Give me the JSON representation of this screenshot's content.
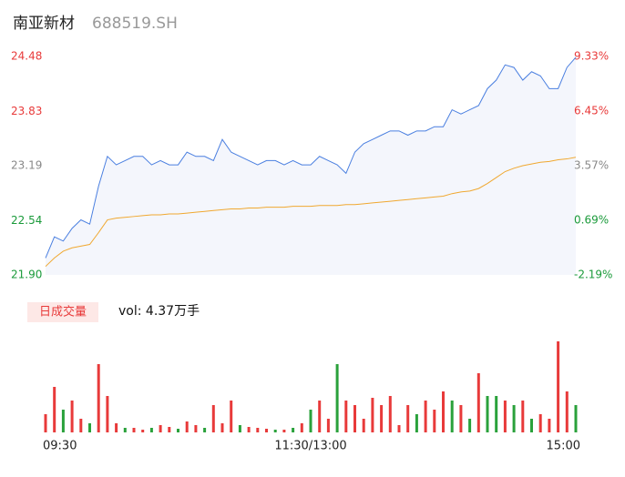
{
  "header": {
    "name": "南亚新材",
    "code": "688519.SH"
  },
  "chart_data": {
    "type": "line",
    "xlim": [
      0,
      240
    ],
    "xticks": [
      {
        "value": 0,
        "label": "09:30"
      },
      {
        "value": 120,
        "label": "11:30/13:00"
      },
      {
        "value": 240,
        "label": "15:00"
      }
    ],
    "x": [
      0,
      4,
      8,
      12,
      16,
      20,
      24,
      28,
      32,
      36,
      40,
      44,
      48,
      52,
      56,
      60,
      64,
      68,
      72,
      76,
      80,
      84,
      88,
      92,
      96,
      100,
      104,
      108,
      112,
      116,
      120,
      124,
      128,
      132,
      136,
      140,
      144,
      148,
      152,
      156,
      160,
      164,
      168,
      172,
      176,
      180,
      184,
      188,
      192,
      196,
      200,
      204,
      208,
      212,
      216,
      220,
      224,
      228,
      232,
      236,
      240
    ],
    "ylim": [
      21.9,
      24.48
    ],
    "yticks": [
      24.48,
      23.83,
      23.19,
      22.54,
      {
        "value": 21.9,
        "label": "21.90"
      }
    ],
    "ytick_colors": [
      "#e83a3a",
      "#e83a3a",
      "#888888",
      "#1a9a3a",
      "#1a9a3a"
    ],
    "y2lim": [
      -2.19,
      9.33
    ],
    "y2ticks": [
      {
        "value": 9.33,
        "label": "9.33%"
      },
      {
        "value": 6.45,
        "label": "6.45%"
      },
      {
        "value": 3.57,
        "label": "3.57%"
      },
      {
        "value": 0.69,
        "label": "0.69%"
      },
      {
        "value": -2.19,
        "label": "-2.19%"
      }
    ],
    "series": [
      {
        "color": "#4a7fe0",
        "values": [
          22.1,
          22.35,
          22.3,
          22.45,
          22.55,
          22.5,
          22.95,
          23.3,
          23.2,
          23.25,
          23.3,
          23.3,
          23.2,
          23.25,
          23.2,
          23.2,
          23.35,
          23.3,
          23.3,
          23.25,
          23.5,
          23.35,
          23.3,
          23.25,
          23.2,
          23.25,
          23.25,
          23.2,
          23.25,
          23.2,
          23.2,
          23.3,
          23.25,
          23.2,
          23.1,
          23.35,
          23.45,
          23.5,
          23.55,
          23.6,
          23.6,
          23.55,
          23.6,
          23.6,
          23.65,
          23.65,
          23.85,
          23.8,
          23.85,
          23.9,
          24.1,
          24.2,
          24.38,
          24.35,
          24.2,
          24.3,
          24.25,
          24.1,
          24.1,
          24.35,
          24.47
        ]
      },
      {
        "color": "#f0a830",
        "values": [
          22.0,
          22.1,
          22.18,
          22.22,
          22.24,
          22.26,
          22.4,
          22.55,
          22.57,
          22.58,
          22.59,
          22.6,
          22.61,
          22.61,
          22.62,
          22.62,
          22.63,
          22.64,
          22.65,
          22.66,
          22.67,
          22.68,
          22.68,
          22.69,
          22.69,
          22.7,
          22.7,
          22.7,
          22.71,
          22.71,
          22.71,
          22.72,
          22.72,
          22.72,
          22.73,
          22.73,
          22.74,
          22.75,
          22.76,
          22.77,
          22.78,
          22.79,
          22.8,
          22.81,
          22.82,
          22.83,
          22.86,
          22.88,
          22.89,
          22.92,
          22.98,
          23.05,
          23.12,
          23.16,
          23.19,
          23.21,
          23.23,
          23.24,
          23.26,
          23.27,
          23.29
        ]
      }
    ],
    "volume": {
      "label": "日成交量",
      "text": "vol: 4.37万手",
      "values": [
        20,
        50,
        25,
        35,
        15,
        10,
        75,
        40,
        10,
        5,
        5,
        3,
        5,
        8,
        6,
        4,
        12,
        8,
        5,
        30,
        10,
        35,
        8,
        6,
        5,
        4,
        3,
        3,
        5,
        10,
        25,
        35,
        15,
        75,
        35,
        30,
        15,
        38,
        30,
        40,
        8,
        30,
        20,
        35,
        25,
        45,
        35,
        30,
        15,
        65,
        40,
        40,
        35,
        30,
        35,
        15,
        20,
        15,
        100,
        45,
        30
      ],
      "colors": [
        "#e83a3a",
        "#e83a3a",
        "#2aa13b",
        "#e83a3a",
        "#e83a3a",
        "#2aa13b",
        "#e83a3a",
        "#e83a3a",
        "#e83a3a",
        "#2aa13b",
        "#e83a3a",
        "#e83a3a",
        "#2aa13b",
        "#e83a3a",
        "#e83a3a",
        "#2aa13b",
        "#e83a3a",
        "#e83a3a",
        "#2aa13b",
        "#e83a3a",
        "#e83a3a",
        "#e83a3a",
        "#2aa13b",
        "#e83a3a",
        "#e83a3a",
        "#e83a3a",
        "#2aa13b",
        "#e83a3a",
        "#2aa13b",
        "#e83a3a",
        "#2aa13b",
        "#e83a3a",
        "#e83a3a",
        "#2aa13b",
        "#e83a3a",
        "#e83a3a",
        "#e83a3a",
        "#e83a3a",
        "#e83a3a",
        "#e83a3a",
        "#e83a3a",
        "#e83a3a",
        "#2aa13b",
        "#e83a3a",
        "#e83a3a",
        "#e83a3a",
        "#2aa13b",
        "#e83a3a",
        "#2aa13b",
        "#e83a3a",
        "#2aa13b",
        "#2aa13b",
        "#e83a3a",
        "#2aa13b",
        "#e83a3a",
        "#2aa13b",
        "#e83a3a",
        "#e83a3a",
        "#e83a3a",
        "#e83a3a",
        "#2aa13b"
      ]
    }
  }
}
